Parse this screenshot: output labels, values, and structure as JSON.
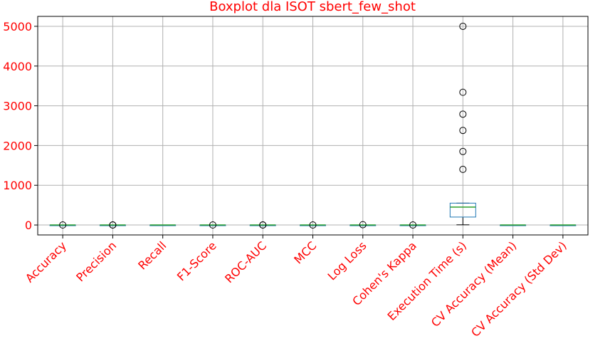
{
  "chart_data": {
    "type": "boxplot",
    "title": "Boxplot dla ISOT sbert_few_shot",
    "categories": [
      "Accuracy",
      "Precision",
      "Recall",
      "F1-Score",
      "ROC-AUC",
      "MCC",
      "Log Loss",
      "Cohen's Kappa",
      "Execution Time (s)",
      "CV Accuracy (Mean)",
      "CV Accuracy (Std Dev)"
    ],
    "yticks": [
      0,
      1000,
      2000,
      3000,
      4000,
      5000
    ],
    "ylim": [
      -250,
      5250
    ],
    "grid": true,
    "boxes": [
      {
        "q1": 0.8,
        "median": 0.85,
        "q3": 0.9,
        "whislo": 0.7,
        "whishi": 1.0,
        "fliers": [
          0.4
        ]
      },
      {
        "q1": 0.8,
        "median": 0.85,
        "q3": 0.9,
        "whislo": 0.7,
        "whishi": 1.0,
        "fliers": [
          0.3,
          0.5
        ]
      },
      {
        "q1": 0.8,
        "median": 0.9,
        "q3": 0.95,
        "whislo": 0.6,
        "whishi": 1.0,
        "fliers": []
      },
      {
        "q1": 0.8,
        "median": 0.85,
        "q3": 0.9,
        "whislo": 0.7,
        "whishi": 1.0,
        "fliers": [
          0.4
        ]
      },
      {
        "q1": 0.85,
        "median": 0.9,
        "q3": 0.95,
        "whislo": 0.75,
        "whishi": 1.0,
        "fliers": [
          0.4,
          0.5
        ]
      },
      {
        "q1": 0.6,
        "median": 0.7,
        "q3": 0.8,
        "whislo": 0.4,
        "whishi": 1.0,
        "fliers": [
          0.0
        ]
      },
      {
        "q1": 0.3,
        "median": 0.4,
        "q3": 0.6,
        "whislo": 0.1,
        "whishi": 1.0,
        "fliers": [
          8
        ]
      },
      {
        "q1": 0.6,
        "median": 0.7,
        "q3": 0.8,
        "whislo": 0.4,
        "whishi": 1.0,
        "fliers": [
          0.0
        ]
      },
      {
        "q1": 200,
        "median": 450,
        "q3": 550,
        "whislo": 5,
        "whishi": 550,
        "fliers": [
          1400,
          1850,
          2380,
          2790,
          3340,
          5000
        ]
      },
      {
        "q1": 0.8,
        "median": 0.85,
        "q3": 0.9,
        "whislo": 0.7,
        "whishi": 1.0,
        "fliers": []
      },
      {
        "q1": 0.01,
        "median": 0.02,
        "q3": 0.03,
        "whislo": 0.0,
        "whishi": 0.05,
        "fliers": []
      }
    ],
    "colors": {
      "text": "#ff0000",
      "box": "#1f77b4",
      "median": "#2ca02c",
      "whisker": "#000000",
      "flier": "#000000",
      "grid": "#b0b0b0",
      "axes": "#000000"
    }
  }
}
